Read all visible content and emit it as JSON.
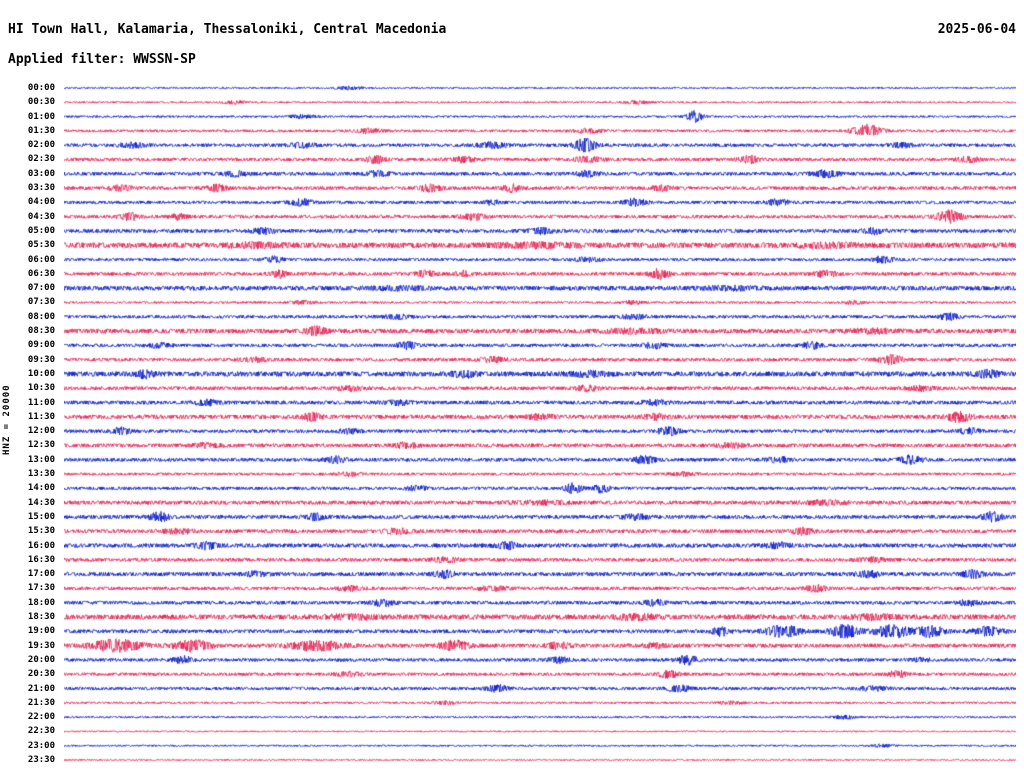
{
  "header": {
    "title": "HI Town Hall, Kalamaria, Thessaloniki, Central Macedonia",
    "date": "2025-06-04",
    "filter_label": "Applied filter: WWSSN-SP"
  },
  "side_label": "HNZ = 20000",
  "palette": {
    "blue": "#0014cc",
    "red": "#e6184b"
  },
  "chart_data": {
    "type": "line",
    "title": "24-hour helicorder seismogram (48 half-hour traces)",
    "station": "HI Town Hall, Kalamaria, Thessaloniki, Central Macedonia",
    "channel": "HNZ",
    "scale": 20000,
    "filter": "WWSSN-SP",
    "date": "2025-06-04",
    "minutes_per_row": 30,
    "start_label": "00:00",
    "end_label": "23:30",
    "legend_position": "none",
    "grid": false,
    "rows": [
      {
        "label": "00:00",
        "color": "blue",
        "base": 0.8,
        "events": [
          [
            0.3,
            0.01,
            1.5
          ]
        ]
      },
      {
        "label": "00:30",
        "color": "red",
        "base": 0.9,
        "events": [
          [
            0.18,
            0.008,
            1.5
          ],
          [
            0.6,
            0.01,
            1.2
          ]
        ]
      },
      {
        "label": "01:00",
        "color": "blue",
        "base": 1.0,
        "events": [
          [
            0.663,
            0.006,
            5.5
          ],
          [
            0.25,
            0.01,
            1.5
          ]
        ]
      },
      {
        "label": "01:30",
        "color": "red",
        "base": 1.3,
        "events": [
          [
            0.843,
            0.01,
            6.0
          ],
          [
            0.32,
            0.01,
            2.0
          ],
          [
            0.55,
            0.01,
            1.8
          ]
        ]
      },
      {
        "label": "02:00",
        "color": "blue",
        "base": 1.6,
        "events": [
          [
            0.547,
            0.008,
            6.5
          ],
          [
            0.45,
            0.012,
            2.5
          ],
          [
            0.07,
            0.01,
            2.2
          ],
          [
            0.25,
            0.01,
            2.0
          ],
          [
            0.88,
            0.008,
            2.0
          ]
        ]
      },
      {
        "label": "02:30",
        "color": "red",
        "base": 1.6,
        "events": [
          [
            0.327,
            0.006,
            3.5
          ],
          [
            0.42,
            0.008,
            2.5
          ],
          [
            0.72,
            0.007,
            3.2
          ],
          [
            0.55,
            0.01,
            2.2
          ],
          [
            0.95,
            0.008,
            2.5
          ]
        ]
      },
      {
        "label": "03:00",
        "color": "blue",
        "base": 1.7,
        "events": [
          [
            0.33,
            0.008,
            2.6
          ],
          [
            0.55,
            0.008,
            2.4
          ],
          [
            0.8,
            0.01,
            3.0
          ],
          [
            0.18,
            0.008,
            2.2
          ]
        ]
      },
      {
        "label": "03:30",
        "color": "red",
        "base": 1.7,
        "events": [
          [
            0.16,
            0.007,
            3.0
          ],
          [
            0.385,
            0.008,
            3.2
          ],
          [
            0.47,
            0.006,
            3.4
          ],
          [
            0.63,
            0.008,
            2.2
          ],
          [
            0.06,
            0.008,
            2.4
          ]
        ]
      },
      {
        "label": "04:00",
        "color": "blue",
        "base": 1.5,
        "events": [
          [
            0.25,
            0.008,
            3.0
          ],
          [
            0.6,
            0.008,
            3.2
          ],
          [
            0.75,
            0.008,
            2.6
          ],
          [
            0.45,
            0.006,
            2.0
          ]
        ]
      },
      {
        "label": "04:30",
        "color": "red",
        "base": 1.6,
        "events": [
          [
            0.068,
            0.007,
            3.5
          ],
          [
            0.43,
            0.008,
            3.0
          ],
          [
            0.93,
            0.009,
            5.5
          ],
          [
            0.12,
            0.006,
            2.5
          ]
        ]
      },
      {
        "label": "05:00",
        "color": "blue",
        "base": 1.8,
        "events": [
          [
            0.21,
            0.008,
            2.5
          ],
          [
            0.5,
            0.01,
            2.3
          ],
          [
            0.85,
            0.008,
            2.3
          ]
        ]
      },
      {
        "label": "05:30",
        "color": "red",
        "base": 2.6,
        "events": [
          [
            0.2,
            0.02,
            1.5
          ],
          [
            0.5,
            0.03,
            1.5
          ],
          [
            0.8,
            0.02,
            1.5
          ]
        ]
      },
      {
        "label": "06:00",
        "color": "blue",
        "base": 1.4,
        "events": [
          [
            0.22,
            0.007,
            2.8
          ],
          [
            0.86,
            0.008,
            3.0
          ],
          [
            0.55,
            0.01,
            1.8
          ]
        ]
      },
      {
        "label": "06:30",
        "color": "red",
        "base": 1.7,
        "events": [
          [
            0.225,
            0.006,
            3.2
          ],
          [
            0.38,
            0.008,
            2.6
          ],
          [
            0.625,
            0.007,
            4.2
          ],
          [
            0.8,
            0.008,
            2.6
          ],
          [
            0.42,
            0.006,
            2.4
          ]
        ]
      },
      {
        "label": "07:00",
        "color": "blue",
        "base": 2.2,
        "events": [
          [
            0.35,
            0.02,
            1.2
          ],
          [
            0.7,
            0.02,
            1.2
          ]
        ]
      },
      {
        "label": "07:30",
        "color": "red",
        "base": 1.1,
        "events": [
          [
            0.25,
            0.008,
            1.6
          ],
          [
            0.6,
            0.008,
            1.5
          ],
          [
            0.83,
            0.006,
            1.8
          ]
        ]
      },
      {
        "label": "08:00",
        "color": "blue",
        "base": 1.5,
        "events": [
          [
            0.93,
            0.007,
            3.0
          ],
          [
            0.35,
            0.01,
            1.8
          ],
          [
            0.6,
            0.01,
            1.8
          ]
        ]
      },
      {
        "label": "08:30",
        "color": "red",
        "base": 2.2,
        "events": [
          [
            0.265,
            0.007,
            3.4
          ],
          [
            0.6,
            0.02,
            1.6
          ],
          [
            0.85,
            0.015,
            1.6
          ]
        ]
      },
      {
        "label": "09:00",
        "color": "blue",
        "base": 1.6,
        "events": [
          [
            0.36,
            0.007,
            3.2
          ],
          [
            0.62,
            0.008,
            2.6
          ],
          [
            0.785,
            0.007,
            3.0
          ],
          [
            0.1,
            0.008,
            2.0
          ]
        ]
      },
      {
        "label": "09:30",
        "color": "red",
        "base": 1.6,
        "events": [
          [
            0.868,
            0.008,
            4.5
          ],
          [
            0.45,
            0.01,
            2.2
          ],
          [
            0.2,
            0.01,
            1.8
          ]
        ]
      },
      {
        "label": "10:00",
        "color": "blue",
        "base": 2.4,
        "events": [
          [
            0.085,
            0.007,
            3.0
          ],
          [
            0.42,
            0.008,
            2.6
          ],
          [
            0.55,
            0.015,
            1.8
          ],
          [
            0.97,
            0.008,
            2.8
          ]
        ]
      },
      {
        "label": "10:30",
        "color": "red",
        "base": 1.7,
        "events": [
          [
            0.55,
            0.008,
            2.4
          ],
          [
            0.3,
            0.01,
            1.8
          ],
          [
            0.9,
            0.01,
            2.0
          ]
        ]
      },
      {
        "label": "11:00",
        "color": "blue",
        "base": 1.8,
        "events": [
          [
            0.15,
            0.008,
            2.2
          ],
          [
            0.62,
            0.01,
            2.0
          ],
          [
            0.35,
            0.01,
            1.8
          ]
        ]
      },
      {
        "label": "11:30",
        "color": "red",
        "base": 2.0,
        "events": [
          [
            0.26,
            0.007,
            3.2
          ],
          [
            0.94,
            0.008,
            4.5
          ],
          [
            0.62,
            0.01,
            2.2
          ],
          [
            0.5,
            0.01,
            2.0
          ]
        ]
      },
      {
        "label": "12:00",
        "color": "blue",
        "base": 1.6,
        "events": [
          [
            0.06,
            0.007,
            3.0
          ],
          [
            0.635,
            0.008,
            3.6
          ],
          [
            0.95,
            0.008,
            2.6
          ],
          [
            0.3,
            0.008,
            2.0
          ]
        ]
      },
      {
        "label": "12:30",
        "color": "red",
        "base": 1.8,
        "events": [
          [
            0.36,
            0.008,
            2.6
          ],
          [
            0.7,
            0.01,
            2.0
          ],
          [
            0.15,
            0.01,
            1.8
          ]
        ]
      },
      {
        "label": "13:00",
        "color": "blue",
        "base": 1.7,
        "events": [
          [
            0.285,
            0.007,
            3.0
          ],
          [
            0.61,
            0.008,
            3.2
          ],
          [
            0.89,
            0.008,
            3.8
          ],
          [
            0.75,
            0.008,
            2.4
          ]
        ]
      },
      {
        "label": "13:30",
        "color": "red",
        "base": 1.3,
        "events": [
          [
            0.3,
            0.01,
            1.6
          ],
          [
            0.65,
            0.01,
            1.6
          ]
        ]
      },
      {
        "label": "14:00",
        "color": "blue",
        "base": 1.5,
        "events": [
          [
            0.535,
            0.006,
            4.5
          ],
          [
            0.565,
            0.006,
            4.0
          ],
          [
            0.37,
            0.008,
            2.0
          ]
        ]
      },
      {
        "label": "14:30",
        "color": "red",
        "base": 1.9,
        "events": [
          [
            0.5,
            0.02,
            1.4
          ],
          [
            0.8,
            0.015,
            1.6
          ]
        ]
      },
      {
        "label": "15:00",
        "color": "blue",
        "base": 1.8,
        "events": [
          [
            0.1,
            0.007,
            4.0
          ],
          [
            0.265,
            0.007,
            3.0
          ],
          [
            0.975,
            0.007,
            4.2
          ],
          [
            0.6,
            0.01,
            2.0
          ]
        ]
      },
      {
        "label": "15:30",
        "color": "red",
        "base": 1.8,
        "events": [
          [
            0.775,
            0.008,
            2.8
          ],
          [
            0.35,
            0.01,
            2.0
          ],
          [
            0.12,
            0.01,
            2.0
          ]
        ]
      },
      {
        "label": "16:00",
        "color": "blue",
        "base": 2.0,
        "events": [
          [
            0.15,
            0.007,
            3.0
          ],
          [
            0.465,
            0.007,
            3.2
          ],
          [
            0.75,
            0.01,
            2.0
          ]
        ]
      },
      {
        "label": "16:30",
        "color": "red",
        "base": 1.7,
        "events": [
          [
            0.4,
            0.01,
            2.0
          ],
          [
            0.85,
            0.01,
            2.0
          ]
        ]
      },
      {
        "label": "17:00",
        "color": "blue",
        "base": 1.9,
        "events": [
          [
            0.4,
            0.007,
            3.2
          ],
          [
            0.845,
            0.008,
            2.8
          ],
          [
            0.955,
            0.007,
            3.6
          ],
          [
            0.2,
            0.008,
            2.2
          ]
        ]
      },
      {
        "label": "17:30",
        "color": "red",
        "base": 1.6,
        "events": [
          [
            0.79,
            0.008,
            2.8
          ],
          [
            0.45,
            0.01,
            2.0
          ],
          [
            0.3,
            0.008,
            2.0
          ]
        ]
      },
      {
        "label": "18:00",
        "color": "blue",
        "base": 1.7,
        "events": [
          [
            0.335,
            0.008,
            2.8
          ],
          [
            0.62,
            0.008,
            2.4
          ],
          [
            0.95,
            0.008,
            2.4
          ]
        ]
      },
      {
        "label": "18:30",
        "color": "red",
        "base": 2.4,
        "events": [
          [
            0.6,
            0.015,
            2.0
          ],
          [
            0.3,
            0.02,
            1.6
          ],
          [
            0.85,
            0.015,
            1.8
          ]
        ]
      },
      {
        "label": "19:00",
        "color": "blue",
        "base": 1.8,
        "events": [
          [
            0.755,
            0.012,
            5.5
          ],
          [
            0.82,
            0.01,
            6.5
          ],
          [
            0.87,
            0.012,
            6.0
          ],
          [
            0.91,
            0.01,
            5.0
          ],
          [
            0.97,
            0.01,
            4.0
          ],
          [
            0.69,
            0.006,
            4.0
          ]
        ]
      },
      {
        "label": "19:30",
        "color": "red",
        "base": 1.9,
        "events": [
          [
            0.055,
            0.018,
            5.5
          ],
          [
            0.135,
            0.012,
            5.0
          ],
          [
            0.265,
            0.018,
            4.5
          ],
          [
            0.41,
            0.01,
            4.5
          ],
          [
            0.52,
            0.008,
            3.0
          ],
          [
            0.62,
            0.008,
            2.0
          ]
        ]
      },
      {
        "label": "20:00",
        "color": "blue",
        "base": 1.6,
        "events": [
          [
            0.125,
            0.007,
            3.2
          ],
          [
            0.655,
            0.007,
            4.5
          ],
          [
            0.52,
            0.008,
            2.4
          ],
          [
            0.9,
            0.008,
            2.0
          ]
        ]
      },
      {
        "label": "20:30",
        "color": "red",
        "base": 1.5,
        "events": [
          [
            0.635,
            0.008,
            3.0
          ],
          [
            0.875,
            0.007,
            3.0
          ],
          [
            0.3,
            0.01,
            1.8
          ]
        ]
      },
      {
        "label": "21:00",
        "color": "blue",
        "base": 1.5,
        "events": [
          [
            0.455,
            0.008,
            3.0
          ],
          [
            0.645,
            0.008,
            3.2
          ],
          [
            0.85,
            0.01,
            1.8
          ]
        ]
      },
      {
        "label": "21:30",
        "color": "red",
        "base": 1.0,
        "events": [
          [
            0.4,
            0.01,
            1.2
          ],
          [
            0.7,
            0.01,
            1.2
          ]
        ]
      },
      {
        "label": "22:00",
        "color": "blue",
        "base": 0.9,
        "events": [
          [
            0.82,
            0.008,
            1.6
          ]
        ]
      },
      {
        "label": "22:30",
        "color": "red",
        "base": 0.7,
        "events": []
      },
      {
        "label": "23:00",
        "color": "blue",
        "base": 0.8,
        "events": [
          [
            0.86,
            0.008,
            1.4
          ]
        ]
      },
      {
        "label": "23:30",
        "color": "red",
        "base": 0.7,
        "events": []
      }
    ]
  }
}
